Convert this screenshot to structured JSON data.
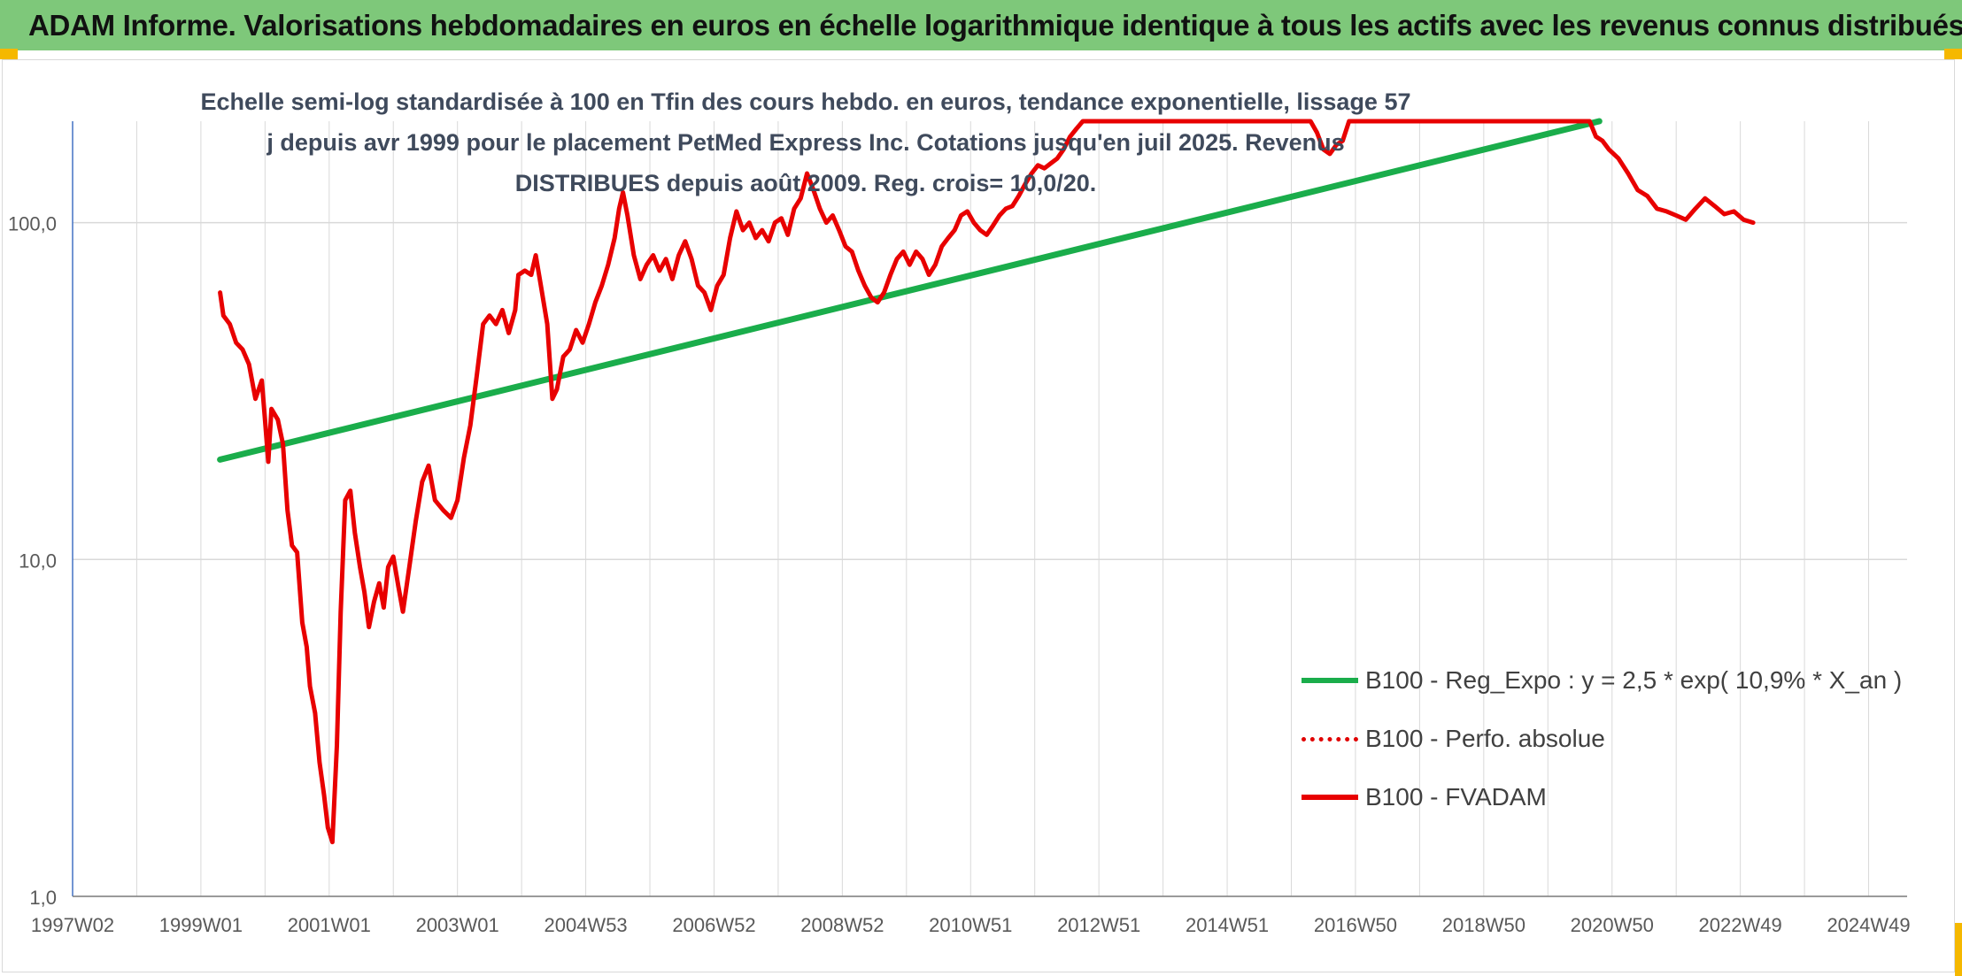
{
  "header": {
    "title": "ADAM Informe. Valorisations hebdomadaires en euros en échelle logarithmique identique à tous les actifs avec les revenus connus distribués"
  },
  "chart_data": {
    "type": "line",
    "title": "Echelle semi-log standardisée à 100 en Tfin des cours hebdo. en euros, tendance exponentielle, lissage 57 j depuis avr 1999 pour le placement PetMed Express Inc. Cotations jusqu'en juil 2025. Revenus DISTRIBUES depuis août 2009. Reg. crois= 10,0/20.",
    "y_scale": "log",
    "ylim": [
      1,
      200
    ],
    "y_ticks": [
      "1,0",
      "10,0",
      "100,0"
    ],
    "y_tick_values": [
      1,
      10,
      100
    ],
    "x_range": [
      1997.0,
      2025.6
    ],
    "x_ticks": [
      "1997W02",
      "1999W01",
      "2001W01",
      "2003W01",
      "2004W53",
      "2006W52",
      "2008W52",
      "2010W51",
      "2012W51",
      "2014W51",
      "2016W50",
      "2018W50",
      "2020W50",
      "2022W49",
      "2024W49"
    ],
    "x_tick_values": [
      1997.0,
      1999.0,
      2001.0,
      2003.0,
      2005.0,
      2007.0,
      2009.0,
      2011.0,
      2013.0,
      2015.0,
      2017.0,
      2019.0,
      2021.0,
      2023.0,
      2025.0
    ],
    "grid": true,
    "legend_position": "bottom-right",
    "series": [
      {
        "name": "B100 - Reg_Expo : y = 2,5 * exp( 10,9% *  X_an )",
        "color": "#1aad4b",
        "style": "solid",
        "points": [
          [
            1999.3,
            19.8
          ],
          [
            2020.8,
            200
          ]
        ]
      },
      {
        "name": "B100 - Perfo. absolue",
        "color": "#e00000",
        "style": "dotted",
        "points": []
      },
      {
        "name": "B100 - FVADAM",
        "color": "#e80000",
        "style": "solid",
        "points": [
          [
            1999.3,
            62
          ],
          [
            1999.35,
            53
          ],
          [
            1999.45,
            50
          ],
          [
            1999.55,
            44
          ],
          [
            1999.65,
            42
          ],
          [
            1999.75,
            38
          ],
          [
            1999.85,
            30
          ],
          [
            1999.95,
            34
          ],
          [
            2000.0,
            26
          ],
          [
            2000.05,
            19.5
          ],
          [
            2000.1,
            28
          ],
          [
            2000.2,
            26
          ],
          [
            2000.28,
            22
          ],
          [
            2000.35,
            14
          ],
          [
            2000.42,
            11
          ],
          [
            2000.5,
            10.5
          ],
          [
            2000.58,
            6.5
          ],
          [
            2000.65,
            5.5
          ],
          [
            2000.7,
            4.2
          ],
          [
            2000.78,
            3.5
          ],
          [
            2000.85,
            2.5
          ],
          [
            2000.92,
            2.0
          ],
          [
            2000.98,
            1.6
          ],
          [
            2001.05,
            1.45
          ],
          [
            2001.12,
            2.8
          ],
          [
            2001.18,
            7
          ],
          [
            2001.25,
            15
          ],
          [
            2001.33,
            16
          ],
          [
            2001.4,
            12
          ],
          [
            2001.48,
            9.5
          ],
          [
            2001.55,
            8
          ],
          [
            2001.62,
            6.3
          ],
          [
            2001.7,
            7.5
          ],
          [
            2001.78,
            8.5
          ],
          [
            2001.85,
            7.2
          ],
          [
            2001.92,
            9.5
          ],
          [
            2002.0,
            10.2
          ],
          [
            2002.08,
            8.3
          ],
          [
            2002.15,
            7
          ],
          [
            2002.25,
            9.5
          ],
          [
            2002.35,
            13
          ],
          [
            2002.45,
            17
          ],
          [
            2002.55,
            19
          ],
          [
            2002.65,
            15
          ],
          [
            2002.78,
            14
          ],
          [
            2002.9,
            13.3
          ],
          [
            2003.0,
            15
          ],
          [
            2003.1,
            20
          ],
          [
            2003.2,
            25
          ],
          [
            2003.3,
            35
          ],
          [
            2003.4,
            50
          ],
          [
            2003.5,
            53
          ],
          [
            2003.6,
            50
          ],
          [
            2003.7,
            55
          ],
          [
            2003.8,
            47
          ],
          [
            2003.9,
            55
          ],
          [
            2003.95,
            70
          ],
          [
            2004.05,
            72
          ],
          [
            2004.15,
            70
          ],
          [
            2004.22,
            80
          ],
          [
            2004.3,
            65
          ],
          [
            2004.4,
            50
          ],
          [
            2004.48,
            30
          ],
          [
            2004.55,
            32
          ],
          [
            2004.65,
            40
          ],
          [
            2004.75,
            42
          ],
          [
            2004.85,
            48
          ],
          [
            2004.95,
            44
          ],
          [
            2005.05,
            50
          ],
          [
            2005.15,
            58
          ],
          [
            2005.25,
            65
          ],
          [
            2005.35,
            75
          ],
          [
            2005.45,
            90
          ],
          [
            2005.52,
            110
          ],
          [
            2005.58,
            123
          ],
          [
            2005.65,
            105
          ],
          [
            2005.75,
            80
          ],
          [
            2005.85,
            68
          ],
          [
            2005.95,
            75
          ],
          [
            2006.05,
            80
          ],
          [
            2006.15,
            72
          ],
          [
            2006.25,
            78
          ],
          [
            2006.35,
            68
          ],
          [
            2006.45,
            80
          ],
          [
            2006.55,
            88
          ],
          [
            2006.65,
            78
          ],
          [
            2006.75,
            65
          ],
          [
            2006.85,
            62
          ],
          [
            2006.95,
            55
          ],
          [
            2007.05,
            65
          ],
          [
            2007.15,
            70
          ],
          [
            2007.25,
            90
          ],
          [
            2007.35,
            108
          ],
          [
            2007.45,
            95
          ],
          [
            2007.55,
            100
          ],
          [
            2007.65,
            90
          ],
          [
            2007.75,
            95
          ],
          [
            2007.85,
            88
          ],
          [
            2007.95,
            100
          ],
          [
            2008.05,
            103
          ],
          [
            2008.15,
            92
          ],
          [
            2008.25,
            110
          ],
          [
            2008.35,
            118
          ],
          [
            2008.45,
            140
          ],
          [
            2008.55,
            125
          ],
          [
            2008.65,
            110
          ],
          [
            2008.75,
            100
          ],
          [
            2008.85,
            105
          ],
          [
            2008.95,
            95
          ],
          [
            2009.05,
            85
          ],
          [
            2009.15,
            82
          ],
          [
            2009.25,
            72
          ],
          [
            2009.35,
            65
          ],
          [
            2009.45,
            60
          ],
          [
            2009.55,
            58
          ],
          [
            2009.65,
            62
          ],
          [
            2009.75,
            70
          ],
          [
            2009.85,
            78
          ],
          [
            2009.95,
            82
          ],
          [
            2010.05,
            75
          ],
          [
            2010.15,
            82
          ],
          [
            2010.25,
            78
          ],
          [
            2010.35,
            70
          ],
          [
            2010.45,
            75
          ],
          [
            2010.55,
            85
          ],
          [
            2010.65,
            90
          ],
          [
            2010.75,
            95
          ],
          [
            2010.85,
            105
          ],
          [
            2010.95,
            108
          ],
          [
            2011.05,
            100
          ],
          [
            2011.15,
            95
          ],
          [
            2011.25,
            92
          ],
          [
            2011.35,
            98
          ],
          [
            2011.45,
            105
          ],
          [
            2011.55,
            110
          ],
          [
            2011.65,
            112
          ],
          [
            2011.75,
            120
          ],
          [
            2011.85,
            130
          ],
          [
            2011.95,
            140
          ],
          [
            2012.05,
            148
          ],
          [
            2012.15,
            145
          ],
          [
            2012.25,
            150
          ],
          [
            2012.35,
            155
          ],
          [
            2012.45,
            165
          ],
          [
            2012.55,
            180
          ],
          [
            2012.65,
            190
          ],
          [
            2012.75,
            200
          ],
          [
            2016.3,
            200
          ],
          [
            2016.4,
            185
          ],
          [
            2016.5,
            165
          ],
          [
            2016.6,
            160
          ],
          [
            2016.7,
            170
          ],
          [
            2016.8,
            175
          ],
          [
            2016.9,
            200
          ],
          [
            2020.65,
            200
          ],
          [
            2020.75,
            180
          ],
          [
            2020.85,
            175
          ],
          [
            2020.95,
            165
          ],
          [
            2021.1,
            155
          ],
          [
            2021.25,
            140
          ],
          [
            2021.4,
            125
          ],
          [
            2021.55,
            120
          ],
          [
            2021.7,
            110
          ],
          [
            2021.85,
            108
          ],
          [
            2022.0,
            105
          ],
          [
            2022.15,
            102
          ],
          [
            2022.3,
            110
          ],
          [
            2022.45,
            118
          ],
          [
            2022.6,
            112
          ],
          [
            2022.75,
            106
          ],
          [
            2022.9,
            108
          ],
          [
            2023.05,
            102
          ],
          [
            2023.2,
            100
          ]
        ]
      }
    ]
  }
}
